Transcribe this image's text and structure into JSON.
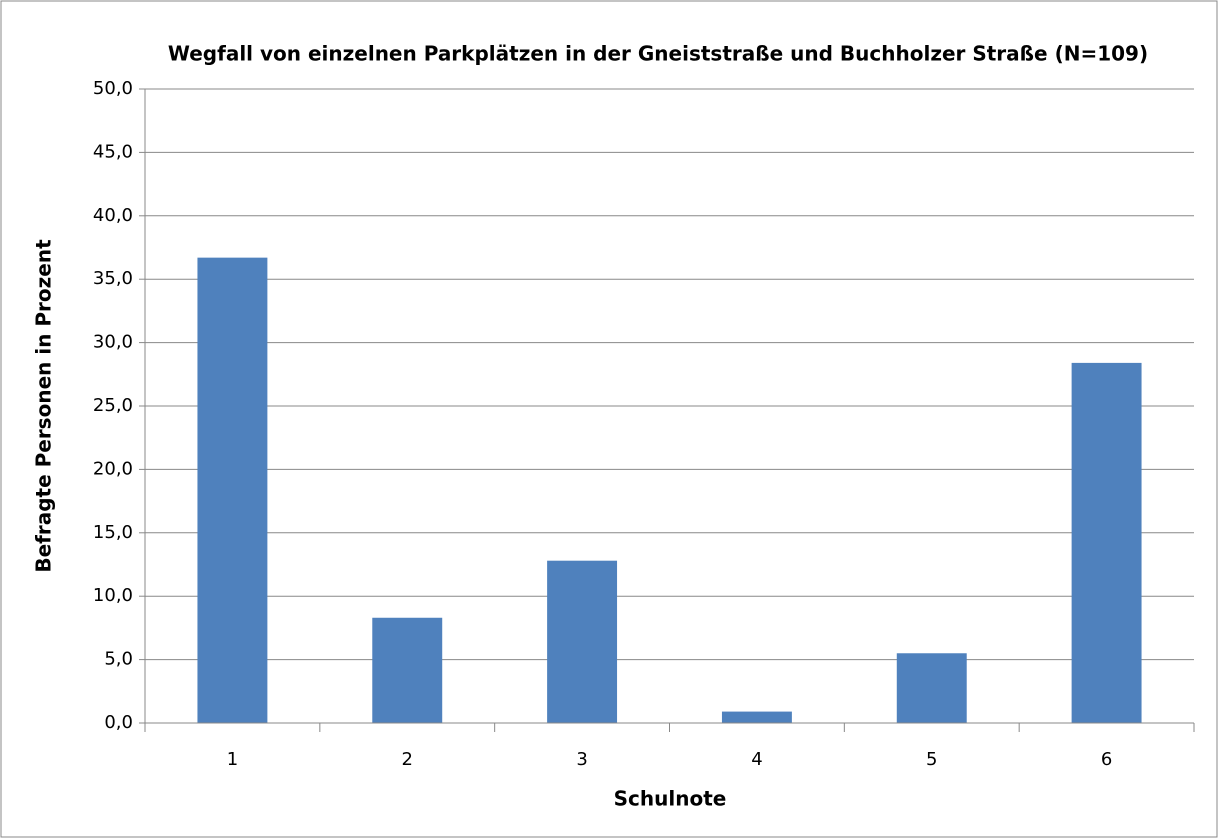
{
  "chart_data": {
    "type": "bar",
    "title": "Wegfall von einzelnen Parkplätzen in der Gneiststraße und Buchholzer Straße (N=109)",
    "x_label": "Schulnote",
    "y_label": "Befragte Personen in Prozent",
    "categories": [
      "1",
      "2",
      "3",
      "4",
      "5",
      "6"
    ],
    "values": [
      36.7,
      8.3,
      12.8,
      0.9,
      5.5,
      28.4
    ],
    "color": "#4f81bd",
    "ylim": [
      0,
      50
    ],
    "yticks": [
      {
        "value": 0,
        "label": "0,0"
      },
      {
        "value": 5,
        "label": "5,0"
      },
      {
        "value": 10,
        "label": "10,0"
      },
      {
        "value": 15,
        "label": "15,0"
      },
      {
        "value": 20,
        "label": "20,0"
      },
      {
        "value": 25,
        "label": "25,0"
      },
      {
        "value": 30,
        "label": "30,0"
      },
      {
        "value": 35,
        "label": "35,0"
      },
      {
        "value": 40,
        "label": "40,0"
      },
      {
        "value": 45,
        "label": "45,0"
      },
      {
        "value": 50,
        "label": "50,0"
      }
    ],
    "grid": true
  }
}
